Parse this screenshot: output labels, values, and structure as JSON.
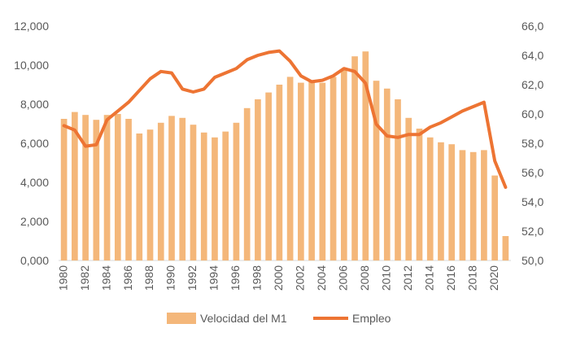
{
  "chart_data": {
    "type": "bar+line",
    "categories": [
      1980,
      1981,
      1982,
      1983,
      1984,
      1985,
      1986,
      1987,
      1988,
      1989,
      1990,
      1991,
      1992,
      1993,
      1994,
      1995,
      1996,
      1997,
      1998,
      1999,
      2000,
      2001,
      2002,
      2003,
      2004,
      2005,
      2006,
      2007,
      2008,
      2009,
      2010,
      2011,
      2012,
      2013,
      2014,
      2015,
      2016,
      2017,
      2018,
      2019,
      2020,
      2021
    ],
    "x_tick_labels": [
      "1980",
      "1982",
      "1984",
      "1986",
      "1988",
      "1990",
      "1992",
      "1994",
      "1996",
      "1998",
      "2000",
      "2002",
      "2004",
      "2006",
      "2008",
      "2010",
      "2012",
      "2014",
      "2016",
      "2018",
      "2020"
    ],
    "series": [
      {
        "name": "Velocidad del M1",
        "type": "bar",
        "axis": "left",
        "color": "#F4B77A",
        "values": [
          7.25,
          7.6,
          7.45,
          7.2,
          7.45,
          7.5,
          7.25,
          6.5,
          6.7,
          7.05,
          7.4,
          7.3,
          6.95,
          6.55,
          6.3,
          6.6,
          7.05,
          7.8,
          8.25,
          8.6,
          9.0,
          9.4,
          9.1,
          9.15,
          9.1,
          9.4,
          9.75,
          10.45,
          10.7,
          9.2,
          8.8,
          8.25,
          7.3,
          6.75,
          6.3,
          6.05,
          5.95,
          5.65,
          5.55,
          5.65,
          4.35,
          1.25
        ]
      },
      {
        "name": "Empleo",
        "type": "line",
        "axis": "right",
        "color": "#ED7433",
        "values": [
          59.2,
          58.9,
          57.8,
          57.9,
          59.6,
          60.2,
          60.8,
          61.6,
          62.4,
          62.9,
          62.8,
          61.7,
          61.5,
          61.7,
          62.5,
          62.8,
          63.1,
          63.7,
          64.0,
          64.2,
          64.3,
          63.6,
          62.6,
          62.2,
          62.3,
          62.6,
          63.1,
          62.9,
          62.1,
          59.3,
          58.5,
          58.4,
          58.6,
          58.6,
          59.1,
          59.4,
          59.8,
          60.2,
          60.5,
          60.8,
          56.8,
          55.0
        ]
      }
    ],
    "y_left": {
      "ylim": [
        0,
        12
      ],
      "ticks": [
        "0,000",
        "2,000",
        "4,000",
        "6,000",
        "8,000",
        "10,000",
        "12,000"
      ]
    },
    "y_right": {
      "ylim": [
        50,
        66
      ],
      "ticks": [
        "50,0",
        "52,0",
        "54,0",
        "56,0",
        "58,0",
        "60,0",
        "62,0",
        "64,0",
        "66,0"
      ]
    },
    "legend": {
      "position": "bottom",
      "items": [
        "Velocidad del M1",
        "Empleo"
      ]
    },
    "grid": false,
    "title": "",
    "xlabel": "",
    "ylabel": ""
  }
}
